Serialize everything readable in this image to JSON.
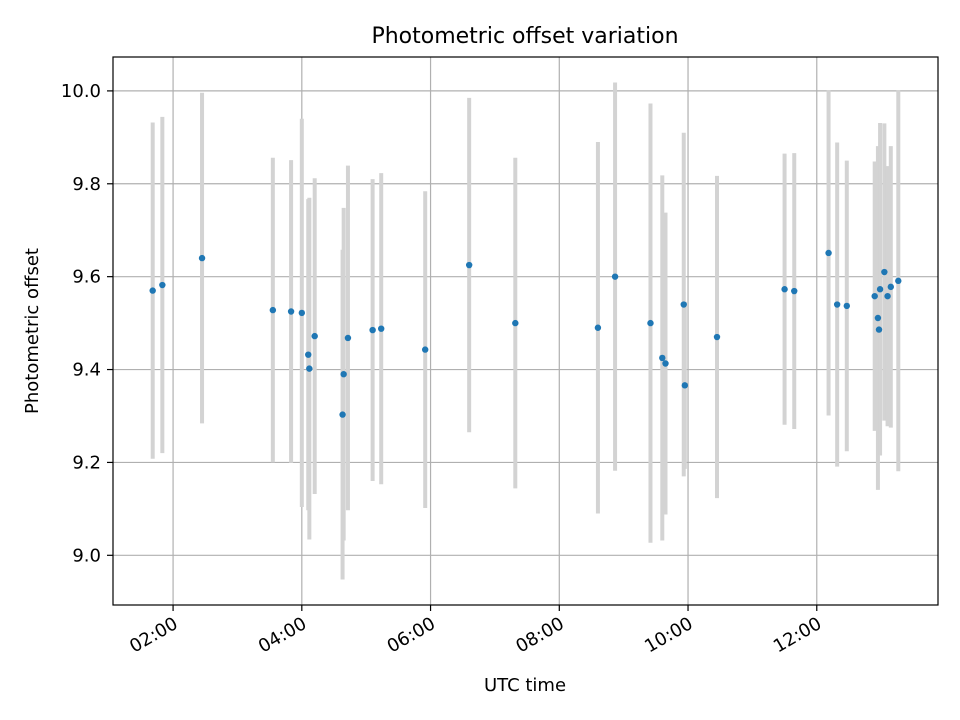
{
  "chart_data": {
    "type": "scatter",
    "title": "Photometric offset variation",
    "xlabel": "UTC time",
    "ylabel": "Photometric offset",
    "xlim": [
      "01:04",
      "13:53"
    ],
    "ylim": [
      8.893,
      10.073
    ],
    "grid": true,
    "x_ticks": [
      "02:00",
      "04:00",
      "06:00",
      "08:00",
      "10:00",
      "12:00"
    ],
    "y_ticks": [
      "9.0",
      "9.2",
      "9.4",
      "9.6",
      "9.8",
      "10.0"
    ],
    "y_tick_values": [
      9.0,
      9.2,
      9.4,
      9.6,
      9.8,
      10.0
    ],
    "colors": {
      "points": "#1f77b4",
      "errorbars": "#d3d3d3",
      "grid": "#b0b0b0"
    },
    "points": [
      {
        "x": "01:41",
        "y": 9.57,
        "err": 0.362
      },
      {
        "x": "01:50",
        "y": 9.582,
        "err": 0.362
      },
      {
        "x": "02:27",
        "y": 9.64,
        "err": 0.356
      },
      {
        "x": "03:33",
        "y": 9.528,
        "err": 0.328
      },
      {
        "x": "03:50",
        "y": 9.525,
        "err": 0.326
      },
      {
        "x": "04:00",
        "y": 9.522,
        "err": 0.418
      },
      {
        "x": "04:06",
        "y": 9.432,
        "err": 0.335
      },
      {
        "x": "04:07",
        "y": 9.402,
        "err": 0.368
      },
      {
        "x": "04:12",
        "y": 9.472,
        "err": 0.34
      },
      {
        "x": "04:38",
        "y": 9.303,
        "err": 0.355
      },
      {
        "x": "04:39",
        "y": 9.39,
        "err": 0.358
      },
      {
        "x": "04:43",
        "y": 9.468,
        "err": 0.371
      },
      {
        "x": "05:06",
        "y": 9.485,
        "err": 0.325
      },
      {
        "x": "05:14",
        "y": 9.488,
        "err": 0.335
      },
      {
        "x": "05:55",
        "y": 9.443,
        "err": 0.341
      },
      {
        "x": "06:36",
        "y": 9.625,
        "err": 0.36
      },
      {
        "x": "07:19",
        "y": 9.5,
        "err": 0.356
      },
      {
        "x": "08:36",
        "y": 9.49,
        "err": 0.4
      },
      {
        "x": "08:52",
        "y": 9.6,
        "err": 0.418
      },
      {
        "x": "09:25",
        "y": 9.5,
        "err": 0.473
      },
      {
        "x": "09:36",
        "y": 9.425,
        "err": 0.393
      },
      {
        "x": "09:39",
        "y": 9.413,
        "err": 0.325
      },
      {
        "x": "09:56",
        "y": 9.54,
        "err": 0.37
      },
      {
        "x": "09:57",
        "y": 9.366,
        "err": 0.18
      },
      {
        "x": "10:27",
        "y": 9.47,
        "err": 0.347
      },
      {
        "x": "11:30",
        "y": 9.573,
        "err": 0.292
      },
      {
        "x": "11:39",
        "y": 9.569,
        "err": 0.297
      },
      {
        "x": "12:11",
        "y": 9.651,
        "err": 0.35
      },
      {
        "x": "12:19",
        "y": 9.54,
        "err": 0.349
      },
      {
        "x": "12:28",
        "y": 9.537,
        "err": 0.313
      },
      {
        "x": "12:54",
        "y": 9.558,
        "err": 0.29
      },
      {
        "x": "12:57",
        "y": 9.511,
        "err": 0.37
      },
      {
        "x": "12:58",
        "y": 9.486,
        "err": 0.27
      },
      {
        "x": "12:59",
        "y": 9.573,
        "err": 0.358
      },
      {
        "x": "13:03",
        "y": 9.61,
        "err": 0.32
      },
      {
        "x": "13:06",
        "y": 9.558,
        "err": 0.28
      },
      {
        "x": "13:09",
        "y": 9.578,
        "err": 0.303
      },
      {
        "x": "13:16",
        "y": 9.591,
        "err": 0.41
      }
    ]
  }
}
